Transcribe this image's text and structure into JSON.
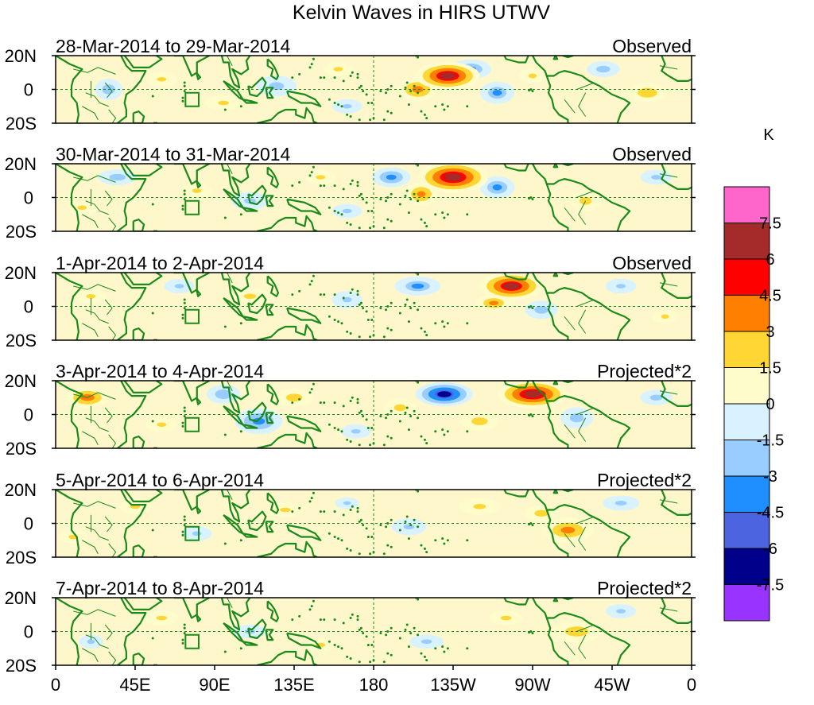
{
  "chart_data": {
    "type": "heatmap",
    "title": "Kelvin Waves in HIRS UTWV",
    "units": "K",
    "x_ticks": [
      "0",
      "45E",
      "90E",
      "135E",
      "180",
      "135W",
      "90W",
      "45W",
      "0"
    ],
    "y_ticks": [
      "20N",
      "0",
      "20S"
    ],
    "xlim_deg_east": [
      0,
      360
    ],
    "ylim_lat": [
      -20,
      20
    ],
    "legend_placement": "right",
    "colorbar": {
      "labels": [
        "7.5",
        "6",
        "4.5",
        "3",
        "1.5",
        "0",
        "-1.5",
        "-3",
        "-4.5",
        "-6",
        "-7.5"
      ],
      "colors": [
        "#ff66cc",
        "#a52a2a",
        "#ff0000",
        "#ff7f00",
        "#ffd633",
        "#fffccc",
        "#d9f2ff",
        "#99ccff",
        "#1f8fff",
        "#4d64e0",
        "#00008b",
        "#9933ff"
      ]
    },
    "panels": [
      {
        "date_range": "28-Mar-2014 to 29-Mar-2014",
        "type_label": "Observed",
        "anomalies": [
          {
            "lon": 222,
            "lat": 8,
            "rlon": 20,
            "rlat": 9,
            "value": 7.0
          },
          {
            "lon": 205,
            "lat": 0,
            "rlon": 13,
            "rlat": 8,
            "value": 4.2
          },
          {
            "lon": 235,
            "lat": 12,
            "rlon": 14,
            "rlat": 7,
            "value": -3.5
          },
          {
            "lon": 250,
            "lat": -2,
            "rlon": 12,
            "rlat": 8,
            "value": -3.2
          },
          {
            "lon": 270,
            "lat": 8,
            "rlon": 10,
            "rlat": 6,
            "value": 2.2
          },
          {
            "lon": 335,
            "lat": -2,
            "rlon": 14,
            "rlat": 7,
            "value": 3.0
          },
          {
            "lon": 310,
            "lat": 12,
            "rlon": 12,
            "rlat": 6,
            "value": -2.6
          },
          {
            "lon": 30,
            "lat": 0,
            "rlon": 10,
            "rlat": 8,
            "value": -2.8
          },
          {
            "lon": 60,
            "lat": 6,
            "rlon": 12,
            "rlat": 6,
            "value": 2.0
          },
          {
            "lon": 95,
            "lat": -8,
            "rlon": 14,
            "rlat": 6,
            "value": 2.0
          },
          {
            "lon": 125,
            "lat": 2,
            "rlon": 15,
            "rlat": 8,
            "value": -2.4
          },
          {
            "lon": 160,
            "lat": 12,
            "rlon": 12,
            "rlat": 6,
            "value": 1.8
          },
          {
            "lon": 165,
            "lat": -10,
            "rlon": 12,
            "rlat": 6,
            "value": -1.8
          }
        ]
      },
      {
        "date_range": "30-Mar-2014 to 31-Mar-2014",
        "type_label": "Observed",
        "anomalies": [
          {
            "lon": 225,
            "lat": 12,
            "rlon": 22,
            "rlat": 10,
            "value": 7.2
          },
          {
            "lon": 207,
            "lat": 2,
            "rlon": 11,
            "rlat": 8,
            "value": 4.0
          },
          {
            "lon": 190,
            "lat": 12,
            "rlon": 13,
            "rlat": 7,
            "value": -3.8
          },
          {
            "lon": 250,
            "lat": 6,
            "rlon": 12,
            "rlat": 8,
            "value": -3.5
          },
          {
            "lon": 300,
            "lat": -2,
            "rlon": 12,
            "rlat": 8,
            "value": 2.4
          },
          {
            "lon": 340,
            "lat": 12,
            "rlon": 12,
            "rlat": 6,
            "value": -2.2
          },
          {
            "lon": 35,
            "lat": 12,
            "rlon": 14,
            "rlat": 6,
            "value": -2.6
          },
          {
            "lon": 80,
            "lat": 4,
            "rlon": 12,
            "rlat": 6,
            "value": 2.0
          },
          {
            "lon": 110,
            "lat": -2,
            "rlon": 14,
            "rlat": 7,
            "value": -2.2
          },
          {
            "lon": 150,
            "lat": 12,
            "rlon": 12,
            "rlat": 6,
            "value": 2.0
          },
          {
            "lon": 15,
            "lat": -6,
            "rlon": 12,
            "rlat": 6,
            "value": 1.8
          },
          {
            "lon": 165,
            "lat": -8,
            "rlon": 12,
            "rlat": 6,
            "value": -1.8
          }
        ]
      },
      {
        "date_range": "1-Apr-2014 to 2-Apr-2014",
        "type_label": "Observed",
        "anomalies": [
          {
            "lon": 258,
            "lat": 12,
            "rlon": 20,
            "rlat": 9,
            "value": 6.8
          },
          {
            "lon": 248,
            "lat": 2,
            "rlon": 12,
            "rlat": 6,
            "value": 3.6
          },
          {
            "lon": 205,
            "lat": 12,
            "rlon": 16,
            "rlat": 7,
            "value": -3.2
          },
          {
            "lon": 275,
            "lat": -2,
            "rlon": 12,
            "rlat": 7,
            "value": -2.6
          },
          {
            "lon": 20,
            "lat": 6,
            "rlon": 12,
            "rlat": 6,
            "value": 2.0
          },
          {
            "lon": 70,
            "lat": 12,
            "rlon": 12,
            "rlat": 6,
            "value": -1.8
          },
          {
            "lon": 110,
            "lat": 6,
            "rlon": 16,
            "rlat": 7,
            "value": 1.8
          },
          {
            "lon": 165,
            "lat": 4,
            "rlon": 12,
            "rlat": 7,
            "value": -2.0
          },
          {
            "lon": 320,
            "lat": 12,
            "rlon": 12,
            "rlat": 6,
            "value": -2.0
          },
          {
            "lon": 345,
            "lat": -6,
            "rlon": 10,
            "rlat": 6,
            "value": 1.8
          }
        ]
      },
      {
        "date_range": "3-Apr-2014 to 4-Apr-2014",
        "type_label": "Projected*2",
        "anomalies": [
          {
            "lon": 270,
            "lat": 12,
            "rlon": 22,
            "rlat": 9,
            "value": 7.2
          },
          {
            "lon": 220,
            "lat": 12,
            "rlon": 18,
            "rlat": 8,
            "value": -6.8
          },
          {
            "lon": 18,
            "lat": 10,
            "rlon": 14,
            "rlat": 7,
            "value": 4.5
          },
          {
            "lon": 115,
            "lat": -4,
            "rlon": 16,
            "rlat": 9,
            "value": -4.0
          },
          {
            "lon": 135,
            "lat": 10,
            "rlon": 14,
            "rlat": 7,
            "value": 2.6
          },
          {
            "lon": 95,
            "lat": 12,
            "rlon": 12,
            "rlat": 7,
            "value": -3.0
          },
          {
            "lon": 195,
            "lat": 4,
            "rlon": 12,
            "rlat": 7,
            "value": 2.4
          },
          {
            "lon": 240,
            "lat": -4,
            "rlon": 14,
            "rlat": 7,
            "value": 2.6
          },
          {
            "lon": 295,
            "lat": -2,
            "rlon": 12,
            "rlat": 8,
            "value": -2.6
          },
          {
            "lon": 340,
            "lat": 10,
            "rlon": 12,
            "rlat": 6,
            "value": -2.4
          },
          {
            "lon": 60,
            "lat": -6,
            "rlon": 12,
            "rlat": 6,
            "value": 2.0
          },
          {
            "lon": 170,
            "lat": -10,
            "rlon": 12,
            "rlat": 6,
            "value": -1.8
          }
        ]
      },
      {
        "date_range": "5-Apr-2014 to 6-Apr-2014",
        "type_label": "Projected*2",
        "anomalies": [
          {
            "lon": 290,
            "lat": -4,
            "rlon": 18,
            "rlat": 9,
            "value": 3.6
          },
          {
            "lon": 275,
            "lat": 6,
            "rlon": 12,
            "rlat": 6,
            "value": 2.6
          },
          {
            "lon": 320,
            "lat": 12,
            "rlon": 14,
            "rlat": 6,
            "value": -2.2
          },
          {
            "lon": 240,
            "lat": 10,
            "rlon": 16,
            "rlat": 7,
            "value": 1.8
          },
          {
            "lon": 200,
            "lat": -2,
            "rlon": 14,
            "rlat": 7,
            "value": -1.8
          },
          {
            "lon": 45,
            "lat": 10,
            "rlon": 12,
            "rlat": 6,
            "value": 2.2
          },
          {
            "lon": 80,
            "lat": -6,
            "rlon": 12,
            "rlat": 6,
            "value": -1.8
          },
          {
            "lon": 130,
            "lat": 8,
            "rlon": 14,
            "rlat": 6,
            "value": 1.8
          },
          {
            "lon": 165,
            "lat": 12,
            "rlon": 10,
            "rlat": 5,
            "value": -1.6
          },
          {
            "lon": 10,
            "lat": -8,
            "rlon": 12,
            "rlat": 6,
            "value": 1.6
          }
        ]
      },
      {
        "date_range": "7-Apr-2014 to 8-Apr-2014",
        "type_label": "Projected*2",
        "anomalies": [
          {
            "lon": 295,
            "lat": 0,
            "rlon": 18,
            "rlat": 8,
            "value": 2.8
          },
          {
            "lon": 320,
            "lat": 12,
            "rlon": 12,
            "rlat": 6,
            "value": -1.8
          },
          {
            "lon": 255,
            "lat": 8,
            "rlon": 14,
            "rlat": 6,
            "value": 1.6
          },
          {
            "lon": 210,
            "lat": -6,
            "rlon": 14,
            "rlat": 6,
            "value": -1.7
          },
          {
            "lon": 60,
            "lat": 8,
            "rlon": 14,
            "rlat": 6,
            "value": 1.8
          },
          {
            "lon": 110,
            "lat": 0,
            "rlon": 14,
            "rlat": 6,
            "value": -1.6
          },
          {
            "lon": 150,
            "lat": -8,
            "rlon": 12,
            "rlat": 6,
            "value": 1.6
          },
          {
            "lon": 20,
            "lat": -6,
            "rlon": 10,
            "rlat": 6,
            "value": -1.6
          }
        ]
      }
    ]
  }
}
